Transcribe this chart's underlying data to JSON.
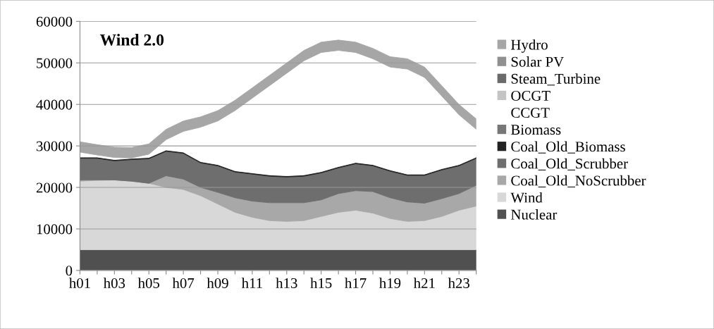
{
  "chart_data": {
    "type": "area",
    "stacked": true,
    "title": "Wind 2.0",
    "categories": [
      "h01",
      null,
      "h03",
      null,
      "h05",
      null,
      "h07",
      null,
      "h09",
      null,
      "h11",
      null,
      "h13",
      null,
      "h15",
      null,
      "h17",
      null,
      "h19",
      null,
      "h21",
      null,
      "h23",
      null
    ],
    "ylim": [
      0,
      60000
    ],
    "yticks": [
      0,
      10000,
      20000,
      30000,
      40000,
      50000,
      60000
    ],
    "grid": "y",
    "legend": "right",
    "series": [
      {
        "name": "Nuclear",
        "color": "#505050",
        "values": [
          5000,
          5000,
          5000,
          5000,
          5000,
          5000,
          5000,
          5000,
          5000,
          5000,
          5000,
          5000,
          5000,
          5000,
          5000,
          5000,
          5000,
          5000,
          5000,
          5000,
          5000,
          5000,
          5000,
          5000
        ]
      },
      {
        "name": "Wind",
        "color": "#d8d8d8",
        "values": [
          16500,
          16700,
          16800,
          16500,
          16000,
          15000,
          14500,
          13000,
          11000,
          9000,
          7800,
          7000,
          6800,
          7000,
          8000,
          9000,
          9500,
          8800,
          7500,
          6800,
          7000,
          8000,
          9500,
          10500
        ]
      },
      {
        "name": "Coal_Old_NoScrubber",
        "color": "#a8a8a8",
        "values": [
          300,
          100,
          0,
          0,
          0,
          2800,
          2500,
          2000,
          2800,
          3500,
          3900,
          4300,
          4500,
          4300,
          4000,
          4500,
          4700,
          5200,
          5000,
          4700,
          4200,
          4300,
          4000,
          5000
        ]
      },
      {
        "name": "Coal_Old_Scrubber",
        "color": "#6e6e6e",
        "values": [
          5200,
          5200,
          4600,
          5200,
          5900,
          5900,
          6200,
          5900,
          6400,
          6200,
          6500,
          6400,
          6200,
          6400,
          6500,
          6200,
          6500,
          6200,
          6400,
          6400,
          6700,
          6900,
          6700,
          6500
        ]
      },
      {
        "name": "Coal_Old_Biomass",
        "color": "#222222",
        "values": [
          300,
          300,
          300,
          300,
          300,
          300,
          300,
          300,
          300,
          300,
          300,
          300,
          300,
          300,
          300,
          300,
          300,
          300,
          300,
          300,
          300,
          300,
          300,
          300
        ]
      },
      {
        "name": "Biomass",
        "color": "#777777",
        "values": [
          null,
          null,
          null,
          null,
          null,
          null,
          null,
          null,
          null,
          null,
          null,
          null,
          null,
          null,
          null,
          null,
          null,
          null,
          null,
          null,
          null,
          null,
          null,
          null
        ]
      },
      {
        "name": "CCGT",
        "color": "#ffffff",
        "values": [
          1200,
          500,
          500,
          100,
          800,
          2500,
          5000,
          8300,
          10500,
          14500,
          18000,
          21500,
          24700,
          27500,
          28700,
          28000,
          26500,
          25500,
          24800,
          25300,
          23300,
          17500,
          12000,
          6700
        ]
      },
      {
        "name": "OCGT",
        "color": "#c4c4c4",
        "values": [
          null,
          null,
          null,
          null,
          null,
          null,
          null,
          null,
          null,
          null,
          null,
          null,
          null,
          null,
          null,
          null,
          null,
          null,
          null,
          null,
          null,
          null,
          null,
          null
        ]
      },
      {
        "name": "Steam_Turbine",
        "color": "#6a6a6a",
        "values": [
          null,
          null,
          null,
          null,
          null,
          null,
          null,
          null,
          null,
          null,
          null,
          null,
          null,
          null,
          null,
          null,
          null,
          null,
          null,
          null,
          null,
          null,
          null,
          null
        ]
      },
      {
        "name": "Solar PV",
        "color": "#909090",
        "values": [
          null,
          null,
          null,
          null,
          null,
          null,
          null,
          null,
          null,
          null,
          null,
          null,
          null,
          null,
          null,
          null,
          null,
          null,
          null,
          null,
          null,
          null,
          null,
          null
        ]
      },
      {
        "name": "Hydro",
        "color": "#a6a6a6",
        "values": [
          2500,
          2500,
          2500,
          2500,
          2500,
          2500,
          2500,
          2500,
          2500,
          2500,
          2500,
          2500,
          2500,
          2500,
          2500,
          2500,
          2500,
          2500,
          2500,
          2500,
          2500,
          2500,
          2500,
          2500
        ]
      }
    ]
  }
}
